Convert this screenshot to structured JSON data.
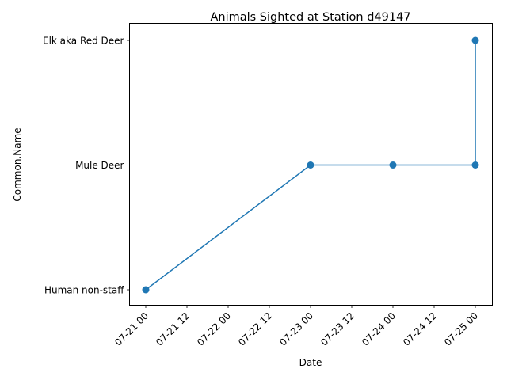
{
  "chart_data": {
    "type": "line",
    "title": "Animals Sighted at Station d49147",
    "xlabel": "Date",
    "ylabel": "Common.Name",
    "x_tick_labels": [
      "07-21 00",
      "07-21 12",
      "07-22 00",
      "07-22 12",
      "07-23 00",
      "07-23 12",
      "07-24 00",
      "07-24 12",
      "07-25 00"
    ],
    "categories": [
      "Human non-staff",
      "Mule Deer",
      "Elk aka Red Deer"
    ],
    "series": [
      {
        "color": "#1f77b4",
        "marker": "circle",
        "points": [
          {
            "x": "07-21 00",
            "y": "Human non-staff"
          },
          {
            "x": "07-23 00",
            "y": "Mule Deer"
          },
          {
            "x": "07-24 00",
            "y": "Mule Deer"
          },
          {
            "x": "07-25 00",
            "y": "Mule Deer"
          },
          {
            "x": "07-25 00",
            "y": "Elk aka Red Deer"
          }
        ]
      }
    ],
    "grid": false,
    "legend": "none"
  }
}
